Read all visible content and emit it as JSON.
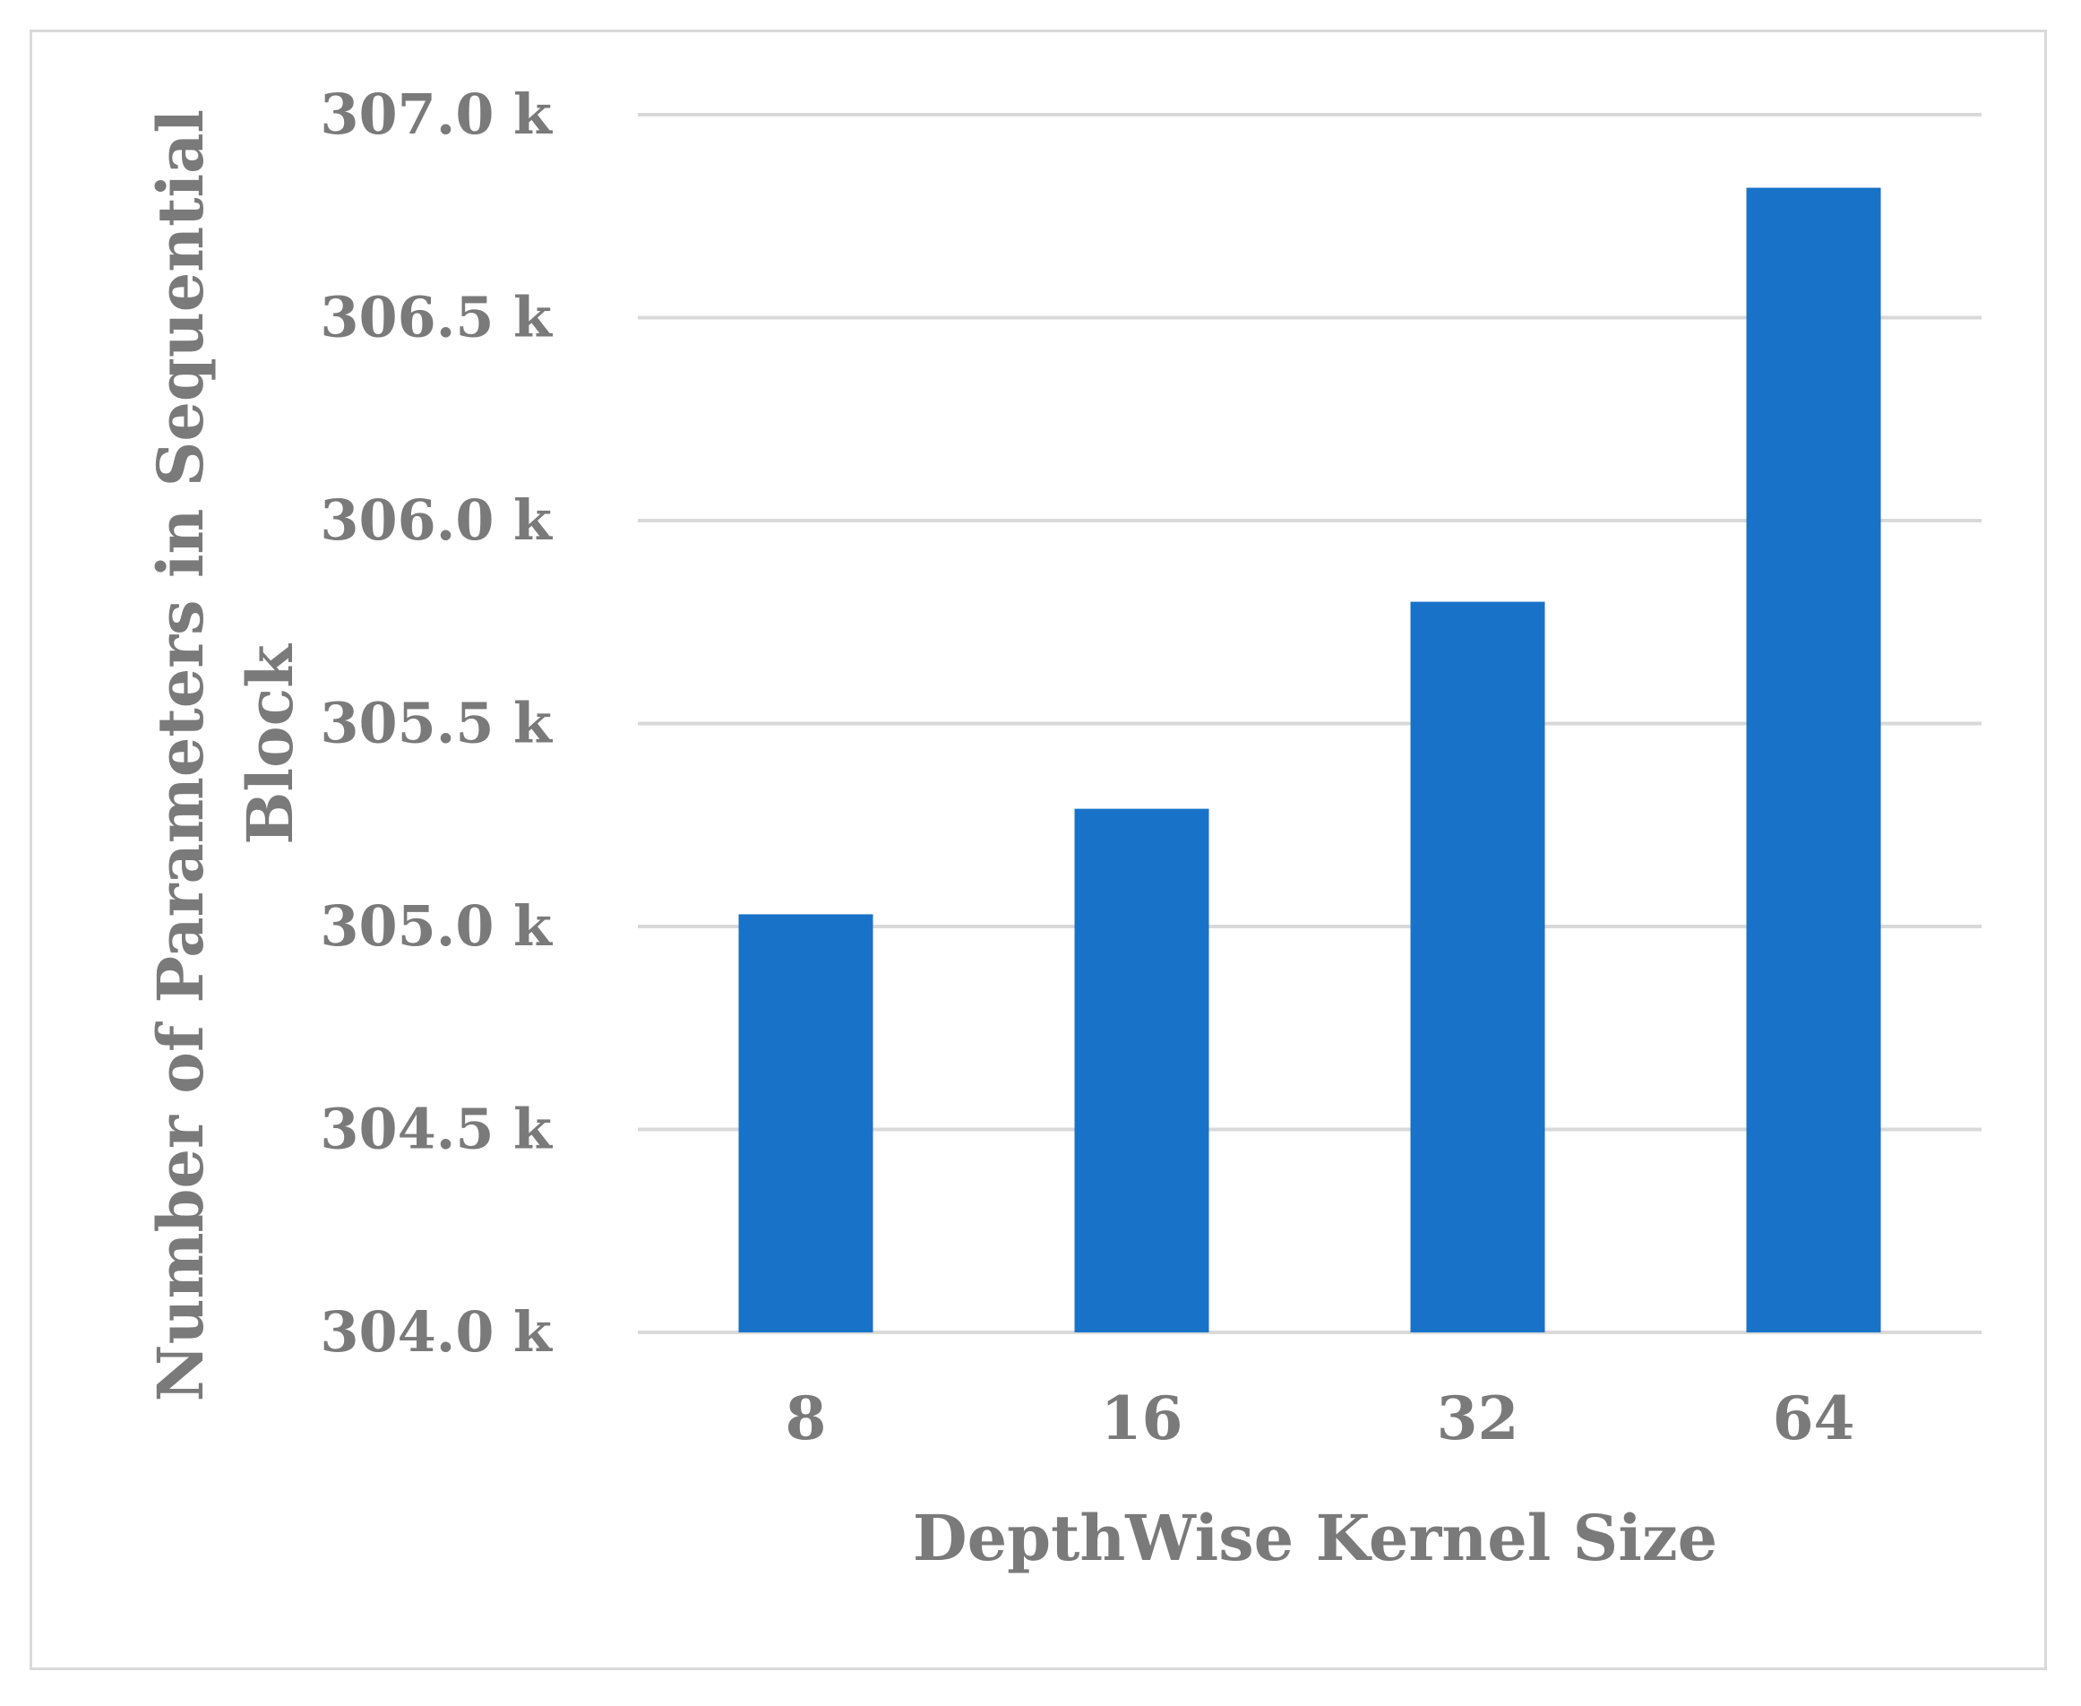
{
  "chart_data": {
    "type": "bar",
    "categories": [
      "8",
      "16",
      "32",
      "64"
    ],
    "values": [
      305.03,
      305.29,
      305.8,
      306.82
    ],
    "value_unit": "k",
    "ylim": [
      304.0,
      307.0
    ],
    "yticks": [
      304.0,
      304.5,
      305.0,
      305.5,
      306.0,
      306.5,
      307.0
    ],
    "ytick_labels": [
      "304.0 k",
      "304.5 k",
      "305.0 k",
      "305.5 k",
      "306.0 k",
      "306.5 k",
      "307.0 k"
    ],
    "xlabel": "DepthWise Kernel Size",
    "ylabel_lines": [
      "Number of Parameters in Sequential",
      "Block"
    ],
    "grid": true,
    "legend": "none",
    "bar_color": "#1873c8",
    "grid_color": "#d9d9d9",
    "text_color": "#7a7a7a"
  }
}
